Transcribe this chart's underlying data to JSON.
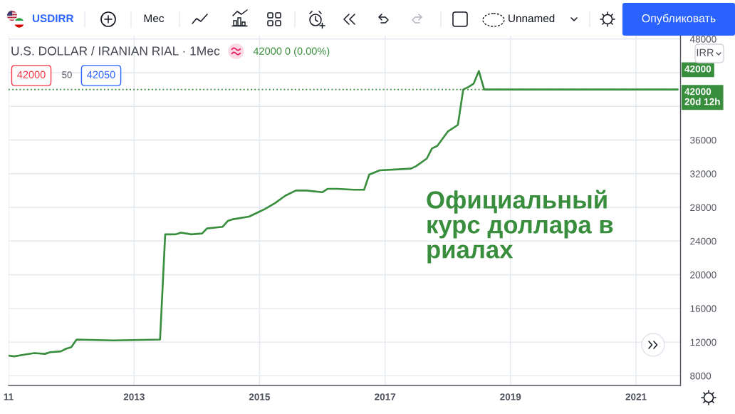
{
  "chart_data": {
    "type": "line",
    "title": "U.S. DOLLAR / IRANIAN RIAL · 1Мес",
    "subtitle": "42000 0 (0.00%)",
    "annotations": [
      "USDIRR",
      "Мес",
      "Unnamed",
      "Опубликовать",
      "42000",
      "50",
      "42050",
      "IRR",
      "Официальный\nкурс доллара в\nриалах"
    ],
    "color": "#388e3c",
    "x": [
      "2011-01",
      "2011-02",
      "2011-04",
      "2011-06",
      "2011-08",
      "2011-09",
      "2011-11",
      "2011-12",
      "2012-01",
      "2012-02",
      "2012-09",
      "2013-06",
      "2013-07",
      "2013-09",
      "2013-10",
      "2013-12",
      "2014-02",
      "2014-03",
      "2014-06",
      "2014-07",
      "2014-08",
      "2014-11",
      "2015-01",
      "2015-02",
      "2015-04",
      "2015-06",
      "2015-08",
      "2015-10",
      "2016-01",
      "2016-02",
      "2016-04",
      "2016-07",
      "2016-09",
      "2016-10",
      "2016-12",
      "2017-03",
      "2017-06",
      "2017-07",
      "2017-09",
      "2017-10",
      "2017-11",
      "2018-01",
      "2018-03",
      "2018-04",
      "2018-05",
      "2018-06",
      "2018-07",
      "2018-08",
      "2021-09"
    ],
    "values": [
      10400,
      10300,
      10500,
      10700,
      10600,
      10800,
      10900,
      11200,
      11400,
      12300,
      12200,
      12300,
      24800,
      24800,
      25000,
      24800,
      24900,
      25500,
      25700,
      26400,
      26600,
      26900,
      27500,
      27800,
      28500,
      29400,
      30000,
      30000,
      29800,
      30200,
      30200,
      30100,
      30100,
      31900,
      32400,
      32500,
      32600,
      32900,
      33800,
      35000,
      35300,
      37000,
      37800,
      42000,
      42300,
      42700,
      44200,
      42000,
      42000
    ],
    "value_labels": [
      null,
      null,
      null,
      null,
      null,
      null,
      null,
      null,
      null,
      null,
      null,
      null,
      null,
      null,
      null,
      null,
      null,
      null,
      null,
      null,
      null,
      null,
      null,
      null,
      null,
      null,
      null,
      null,
      null,
      null,
      null,
      null,
      null,
      null,
      null,
      null,
      null,
      null,
      null,
      null,
      null,
      null,
      null,
      null,
      null,
      null,
      null,
      null,
      "42000"
    ],
    "xlim": [
      "2011-01-01",
      "2021-09-17"
    ],
    "xticks": [
      {
        "value": "2011-01-01",
        "label": "11"
      },
      "2013",
      "2015",
      "2017",
      "2019",
      "2021"
    ],
    "ylim": [
      6870,
      48400
    ],
    "yticks": [
      8000,
      12000,
      16000,
      20000,
      24000,
      28000,
      32000,
      36000,
      {
        "value": 40000,
        "label": null
      },
      {
        "value": 44000,
        "label": null
      },
      48000
    ],
    "ref_lines": [
      {
        "axis": "y",
        "value": 42000,
        "label": "42000\n20d 12h",
        "color": "#388e3c",
        "line_style": "dotted"
      }
    ],
    "grid": true
  }
}
